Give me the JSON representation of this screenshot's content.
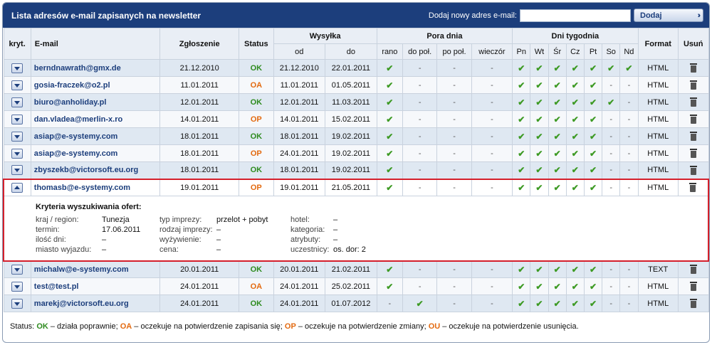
{
  "header": {
    "title": "Lista adresów e-mail zapisanych na newsletter",
    "add_label": "Dodaj nowy adres e-mail:",
    "add_input_value": "",
    "add_button": "Dodaj"
  },
  "columns": {
    "kryt": "kryt.",
    "email": "E-mail",
    "zgloszenie": "Zgłoszenie",
    "status": "Status",
    "wysylka": "Wysyłka",
    "od": "od",
    "do": "do",
    "pora_dnia": "Pora dnia",
    "rano": "rano",
    "do_pol": "do poł.",
    "po_pol": "po poł.",
    "wieczor": "wieczór",
    "dni_tygodnia": "Dni tygodnia",
    "days": [
      "Pn",
      "Wt",
      "Śr",
      "Cz",
      "Pt",
      "So",
      "Nd"
    ],
    "format": "Format",
    "usun": "Usuń"
  },
  "rows": [
    {
      "email": "berndnawrath@gmx.de",
      "zgloszenie": "21.12.2010",
      "status": "OK",
      "od": "21.12.2010",
      "do": "22.01.2011",
      "pora": [
        "✔",
        "-",
        "-",
        "-"
      ],
      "days": [
        "✔",
        "✔",
        "✔",
        "✔",
        "✔",
        "✔",
        "✔"
      ],
      "format": "HTML"
    },
    {
      "email": "gosia-fraczek@o2.pl",
      "zgloszenie": "11.01.2011",
      "status": "OA",
      "od": "11.01.2011",
      "do": "01.05.2011",
      "pora": [
        "✔",
        "-",
        "-",
        "-"
      ],
      "days": [
        "✔",
        "✔",
        "✔",
        "✔",
        "✔",
        "-",
        "-"
      ],
      "format": "HTML"
    },
    {
      "email": "biuro@anholiday.pl",
      "zgloszenie": "12.01.2011",
      "status": "OK",
      "od": "12.01.2011",
      "do": "11.03.2011",
      "pora": [
        "✔",
        "-",
        "-",
        "-"
      ],
      "days": [
        "✔",
        "✔",
        "✔",
        "✔",
        "✔",
        "✔",
        "-"
      ],
      "format": "HTML"
    },
    {
      "email": "dan.vladea@merlin-x.ro",
      "zgloszenie": "14.01.2011",
      "status": "OP",
      "od": "14.01.2011",
      "do": "15.02.2011",
      "pora": [
        "✔",
        "-",
        "-",
        "-"
      ],
      "days": [
        "✔",
        "✔",
        "✔",
        "✔",
        "✔",
        "-",
        "-"
      ],
      "format": "HTML"
    },
    {
      "email": "asiap@e-systemy.com",
      "zgloszenie": "18.01.2011",
      "status": "OK",
      "od": "18.01.2011",
      "do": "19.02.2011",
      "pora": [
        "✔",
        "-",
        "-",
        "-"
      ],
      "days": [
        "✔",
        "✔",
        "✔",
        "✔",
        "✔",
        "-",
        "-"
      ],
      "format": "HTML"
    },
    {
      "email": "asiap@e-systemy.com",
      "zgloszenie": "18.01.2011",
      "status": "OP",
      "od": "24.01.2011",
      "do": "19.02.2011",
      "pora": [
        "✔",
        "-",
        "-",
        "-"
      ],
      "days": [
        "✔",
        "✔",
        "✔",
        "✔",
        "✔",
        "-",
        "-"
      ],
      "format": "HTML"
    },
    {
      "email": "zbyszekb@victorsoft.eu.org",
      "zgloszenie": "18.01.2011",
      "status": "OK",
      "od": "18.01.2011",
      "do": "19.02.2011",
      "pora": [
        "✔",
        "-",
        "-",
        "-"
      ],
      "days": [
        "✔",
        "✔",
        "✔",
        "✔",
        "✔",
        "-",
        "-"
      ],
      "format": "HTML"
    },
    {
      "email": "thomasb@e-systemy.com",
      "zgloszenie": "19.01.2011",
      "status": "OP",
      "od": "19.01.2011",
      "do": "21.05.2011",
      "pora": [
        "✔",
        "-",
        "-",
        "-"
      ],
      "days": [
        "✔",
        "✔",
        "✔",
        "✔",
        "✔",
        "-",
        "-"
      ],
      "format": "HTML",
      "expanded": true
    },
    {
      "email": "michalw@e-systemy.com",
      "zgloszenie": "20.01.2011",
      "status": "OK",
      "od": "20.01.2011",
      "do": "21.02.2011",
      "pora": [
        "✔",
        "-",
        "-",
        "-"
      ],
      "days": [
        "✔",
        "✔",
        "✔",
        "✔",
        "✔",
        "-",
        "-"
      ],
      "format": "TEXT"
    },
    {
      "email": "test@test.pl",
      "zgloszenie": "24.01.2011",
      "status": "OA",
      "od": "24.01.2011",
      "do": "25.02.2011",
      "pora": [
        "✔",
        "-",
        "-",
        "-"
      ],
      "days": [
        "✔",
        "✔",
        "✔",
        "✔",
        "✔",
        "-",
        "-"
      ],
      "format": "HTML"
    },
    {
      "email": "marekj@victorsoft.eu.org",
      "zgloszenie": "24.01.2011",
      "status": "OK",
      "od": "24.01.2011",
      "do": "01.07.2012",
      "pora": [
        "-",
        "✔",
        "-",
        "-"
      ],
      "days": [
        "✔",
        "✔",
        "✔",
        "✔",
        "✔",
        "-",
        "-"
      ],
      "format": "HTML"
    }
  ],
  "detail": {
    "title": "Kryteria wyszukiwania ofert:",
    "fields": {
      "kraj_label": "kraj / region:",
      "kraj_value": "Tunezja",
      "termin_label": "termin:",
      "termin_value": "17.06.2011",
      "ilosc_label": "ilość dni:",
      "ilosc_value": "–",
      "miasto_label": "miasto wyjazdu:",
      "miasto_value": "–",
      "typ_label": "typ imprezy:",
      "typ_value": "przelot + pobyt",
      "rodzaj_label": "rodzaj imprezy:",
      "rodzaj_value": "–",
      "wyzywienie_label": "wyżywienie:",
      "wyzywienie_value": "–",
      "cena_label": "cena:",
      "cena_value": "–",
      "hotel_label": "hotel:",
      "hotel_value": "–",
      "kategoria_label": "kategoria:",
      "kategoria_value": "–",
      "atrybuty_label": "atrybuty:",
      "atrybuty_value": "–",
      "uczestnicy_label": "uczestnicy:",
      "uczestnicy_value": "os. dor: 2"
    }
  },
  "legend": {
    "prefix": "Status:",
    "ok": "OK",
    "ok_text": "– działa poprawnie;",
    "oa": "OA",
    "oa_text": "– oczekuje na potwierdzenie zapisania się;",
    "op": "OP",
    "op_text": "– oczekuje na potwierdzenie zmiany;",
    "ou": "OU",
    "ou_text": "– oczekuje na potwierdzenie usunięcia."
  },
  "colors": {
    "header_bg": "#1c3e7c",
    "status_ok": "#2e8b1f",
    "status_pending": "#e36a10",
    "selection_border": "#d51f2b"
  }
}
